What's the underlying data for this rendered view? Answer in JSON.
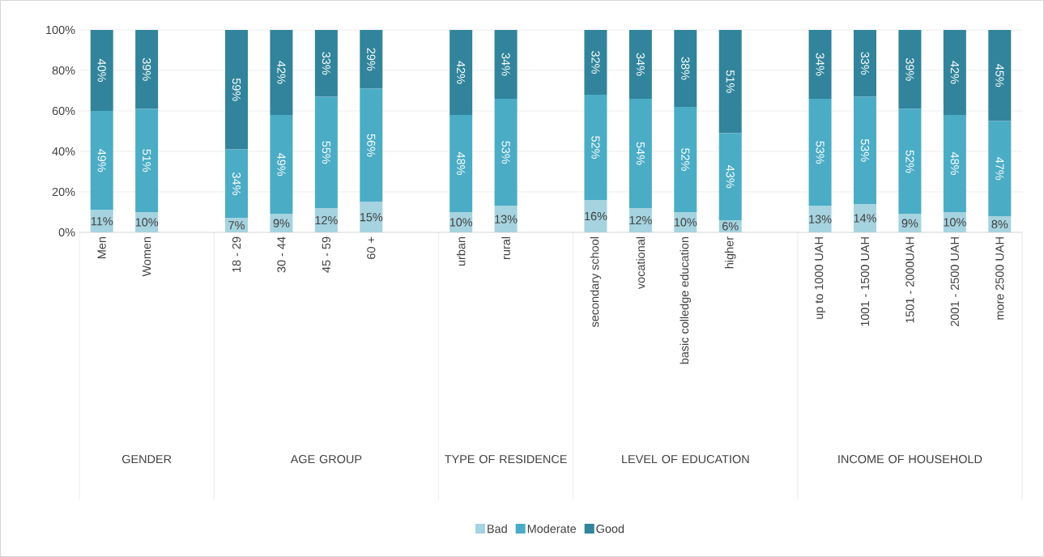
{
  "chart_data": {
    "type": "bar",
    "stacked": true,
    "categories": [
      "Men",
      "Women",
      null,
      "18 - 29",
      "30 - 44",
      "45 - 59",
      "60 +",
      null,
      "urban",
      "rural",
      null,
      "secondary school",
      "vocational",
      "basic colledge education",
      "higher",
      null,
      "up to 1000 UAH",
      "1001 - 1500 UAH",
      "1501 - 2000UAH",
      "2001 - 2500 UAH",
      "more 2500 UAH"
    ],
    "series": [
      {
        "name": "Bad",
        "color": "#a5d3df",
        "values": [
          11,
          10,
          null,
          7,
          9,
          12,
          15,
          null,
          10,
          13,
          null,
          16,
          12,
          10,
          6,
          null,
          13,
          14,
          9,
          10,
          8
        ],
        "value_labels": [
          "11%",
          "10%",
          null,
          "7%",
          "9%",
          "12%",
          "15%",
          null,
          "10%",
          "13%",
          null,
          "16%",
          "12%",
          "10%",
          "6%",
          null,
          "13%",
          "14%",
          "9%",
          "10%",
          "8%"
        ]
      },
      {
        "name": "Moderate",
        "color": "#4bacc6",
        "values": [
          49,
          51,
          null,
          34,
          49,
          55,
          56,
          null,
          48,
          53,
          null,
          52,
          54,
          52,
          43,
          null,
          53,
          53,
          52,
          48,
          47
        ],
        "value_labels": [
          "49%",
          "51%",
          null,
          "34%",
          "49%",
          "55%",
          "56%",
          null,
          "48%",
          "53%",
          null,
          "52%",
          "54%",
          "52%",
          "43%",
          null,
          "53%",
          "53%",
          "52%",
          "48%",
          "47%"
        ]
      },
      {
        "name": "Good",
        "color": "#31849b",
        "values": [
          40,
          39,
          null,
          59,
          42,
          33,
          29,
          null,
          42,
          34,
          null,
          32,
          34,
          38,
          51,
          null,
          34,
          33,
          39,
          42,
          45
        ],
        "value_labels": [
          "40%",
          "39%",
          null,
          "59%",
          "42%",
          "33%",
          "29%",
          null,
          "42%",
          "34%",
          null,
          "32%",
          "34%",
          "38%",
          "51%",
          null,
          "34%",
          "33%",
          "39%",
          "42%",
          "45%"
        ]
      }
    ],
    "ylim": [
      0,
      100
    ],
    "yticks": [
      {
        "value": 0,
        "label": "0%"
      },
      {
        "value": 20,
        "label": "20%"
      },
      {
        "value": 40,
        "label": "40%"
      },
      {
        "value": 60,
        "label": "60%"
      },
      {
        "value": 80,
        "label": "80%"
      },
      {
        "value": 100,
        "label": "100%"
      }
    ],
    "grid": "y",
    "legend": "bottom",
    "annotations": [
      "GENDER",
      "AGE GROUP",
      "TYPE OF RESIDENCE",
      "LEVEL OF EDUCATION",
      "INCOME OF HOUSEHOLD"
    ]
  }
}
